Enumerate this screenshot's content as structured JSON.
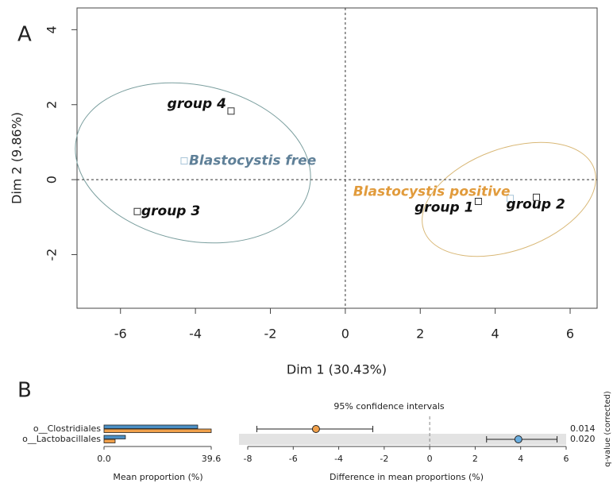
{
  "chart_data": [
    {
      "type": "scatter",
      "panel": "A",
      "x_label": "Dim 1 (30.43%)",
      "y_label": "Dim 2 (9.86%)",
      "xlim": [
        -7.16,
        6.72
      ],
      "ylim": [
        -3.43,
        4.58
      ],
      "xticks": [
        -6,
        -4,
        -2,
        0,
        2,
        4,
        6
      ],
      "yticks": [
        -2,
        0,
        2,
        4
      ],
      "points": [
        {
          "label": "group 4",
          "x": -3.05,
          "y": 1.83,
          "color": "#111111"
        },
        {
          "label": "Blastocystis free",
          "x": -4.3,
          "y": 0.5,
          "color": "#5f8098"
        },
        {
          "label": "group 3",
          "x": -5.55,
          "y": -0.85,
          "color": "#111111"
        },
        {
          "label": "group 1",
          "x": 3.55,
          "y": -0.58,
          "color": "#111111"
        },
        {
          "label": "Blastocystis positive",
          "x": 4.4,
          "y": -0.5,
          "color": "#e19b3c"
        },
        {
          "label": "group 2",
          "x": 5.1,
          "y": -0.47,
          "color": "#111111"
        }
      ]
    },
    {
      "type": "hbar",
      "panel": "B",
      "x_label": "Mean proportion (%)",
      "categories": [
        "o__Clostridiales",
        "o__Lactobacillales"
      ],
      "series": [
        {
          "color": "#4b8fc4",
          "values": [
            34.6,
            7.9
          ]
        },
        {
          "color": "#f0a04b",
          "values": [
            39.6,
            4.1
          ]
        }
      ],
      "xlim": [
        0,
        39.6
      ],
      "xticks": [
        {
          "value": 0,
          "label": "0.0"
        },
        39.6
      ]
    },
    {
      "type": "errorbar",
      "title": "95% confidence intervals",
      "x_label": "Difference in mean proportions (%)",
      "q_label": "q-value (corrected)",
      "values": [
        -5.0,
        3.9
      ],
      "ci_low": [
        -7.6,
        2.5
      ],
      "ci_high": [
        -2.5,
        5.6
      ],
      "colors": [
        "#f0a04b",
        "#6aaee0"
      ],
      "q_values": [
        "0.014",
        "0.020"
      ],
      "xlim": [
        -8,
        6
      ],
      "xticks": [
        -8,
        -6,
        -4,
        -2,
        0,
        2,
        4,
        6
      ]
    }
  ]
}
